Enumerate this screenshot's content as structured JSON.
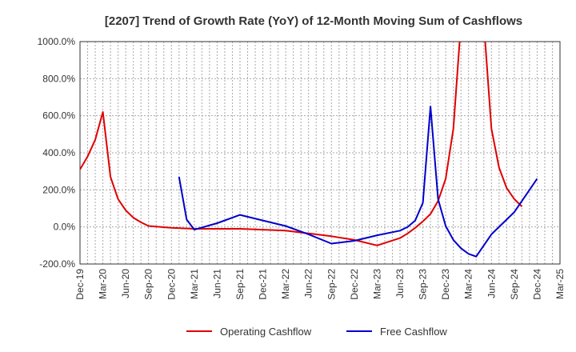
{
  "chart_data": {
    "type": "line",
    "title": "[2207]  Trend of Growth Rate (YoY) of 12-Month Moving Sum of Cashflows",
    "xlabel": "",
    "ylabel": "",
    "ylim": [
      -200,
      1000
    ],
    "y_ticks": [
      "1000.0%",
      "800.0%",
      "600.0%",
      "400.0%",
      "200.0%",
      "0.0%",
      "-200.0%"
    ],
    "y_tick_values": [
      1000,
      800,
      600,
      400,
      200,
      0,
      -200
    ],
    "x_ticks": [
      "Dec-19",
      "Mar-20",
      "Jun-20",
      "Sep-20",
      "Dec-20",
      "Mar-21",
      "Jun-21",
      "Sep-21",
      "Dec-21",
      "Mar-22",
      "Jun-22",
      "Sep-22",
      "Dec-22",
      "Mar-23",
      "Jun-23",
      "Sep-23",
      "Dec-23",
      "Mar-24",
      "Jun-24",
      "Sep-24",
      "Dec-24",
      "Mar-25"
    ],
    "grid": true,
    "legend_position": "bottom",
    "series": [
      {
        "name": "Operating Cashflow",
        "color": "#e00000",
        "points": [
          [
            "Dec-19",
            310
          ],
          [
            "Jan-20",
            380
          ],
          [
            "Feb-20",
            470
          ],
          [
            "Mar-20",
            620
          ],
          [
            "Apr-20",
            270
          ],
          [
            "May-20",
            150
          ],
          [
            "Jun-20",
            90
          ],
          [
            "Jul-20",
            50
          ],
          [
            "Aug-20",
            25
          ],
          [
            "Sep-20",
            5
          ],
          [
            "Dec-20",
            -5
          ],
          [
            "Mar-21",
            -10
          ],
          [
            "Jun-21",
            -10
          ],
          [
            "Sep-21",
            -10
          ],
          [
            "Dec-21",
            -15
          ],
          [
            "Mar-22",
            -20
          ],
          [
            "Jun-22",
            -35
          ],
          [
            "Sep-22",
            -50
          ],
          [
            "Dec-22",
            -70
          ],
          [
            "Mar-23",
            -100
          ],
          [
            "Jun-23",
            -60
          ],
          [
            "Jul-23",
            -35
          ],
          [
            "Aug-23",
            -5
          ],
          [
            "Sep-23",
            30
          ],
          [
            "Oct-23",
            70
          ],
          [
            "Nov-23",
            140
          ],
          [
            "Dec-23",
            260
          ],
          [
            "Jan-24",
            530
          ],
          [
            "Feb-24",
            1100
          ],
          [
            "Mar-24",
            1400
          ],
          [
            "Apr-24",
            1400
          ],
          [
            "May-24",
            1100
          ],
          [
            "Jun-24",
            530
          ],
          [
            "Jul-24",
            320
          ],
          [
            "Aug-24",
            210
          ],
          [
            "Sep-24",
            150
          ],
          [
            "Oct-24",
            110
          ]
        ]
      },
      {
        "name": "Free Cashflow",
        "color": "#0000cc",
        "points": [
          [
            "Jan-21",
            270
          ],
          [
            "Feb-21",
            40
          ],
          [
            "Mar-21",
            -15
          ],
          [
            "Jun-21",
            20
          ],
          [
            "Sep-21",
            65
          ],
          [
            "Dec-21",
            35
          ],
          [
            "Mar-22",
            5
          ],
          [
            "Jun-22",
            -40
          ],
          [
            "Sep-22",
            -90
          ],
          [
            "Dec-22",
            -75
          ],
          [
            "Mar-23",
            -45
          ],
          [
            "Jun-23",
            -20
          ],
          [
            "Jul-23",
            0
          ],
          [
            "Aug-23",
            35
          ],
          [
            "Sep-23",
            130
          ],
          [
            "Oct-23",
            650
          ],
          [
            "Nov-23",
            150
          ],
          [
            "Dec-23",
            5
          ],
          [
            "Jan-24",
            -70
          ],
          [
            "Feb-24",
            -115
          ],
          [
            "Mar-24",
            -145
          ],
          [
            "Apr-24",
            -160
          ],
          [
            "Jun-24",
            -40
          ],
          [
            "Sep-24",
            80
          ],
          [
            "Dec-24",
            260
          ]
        ]
      }
    ]
  }
}
